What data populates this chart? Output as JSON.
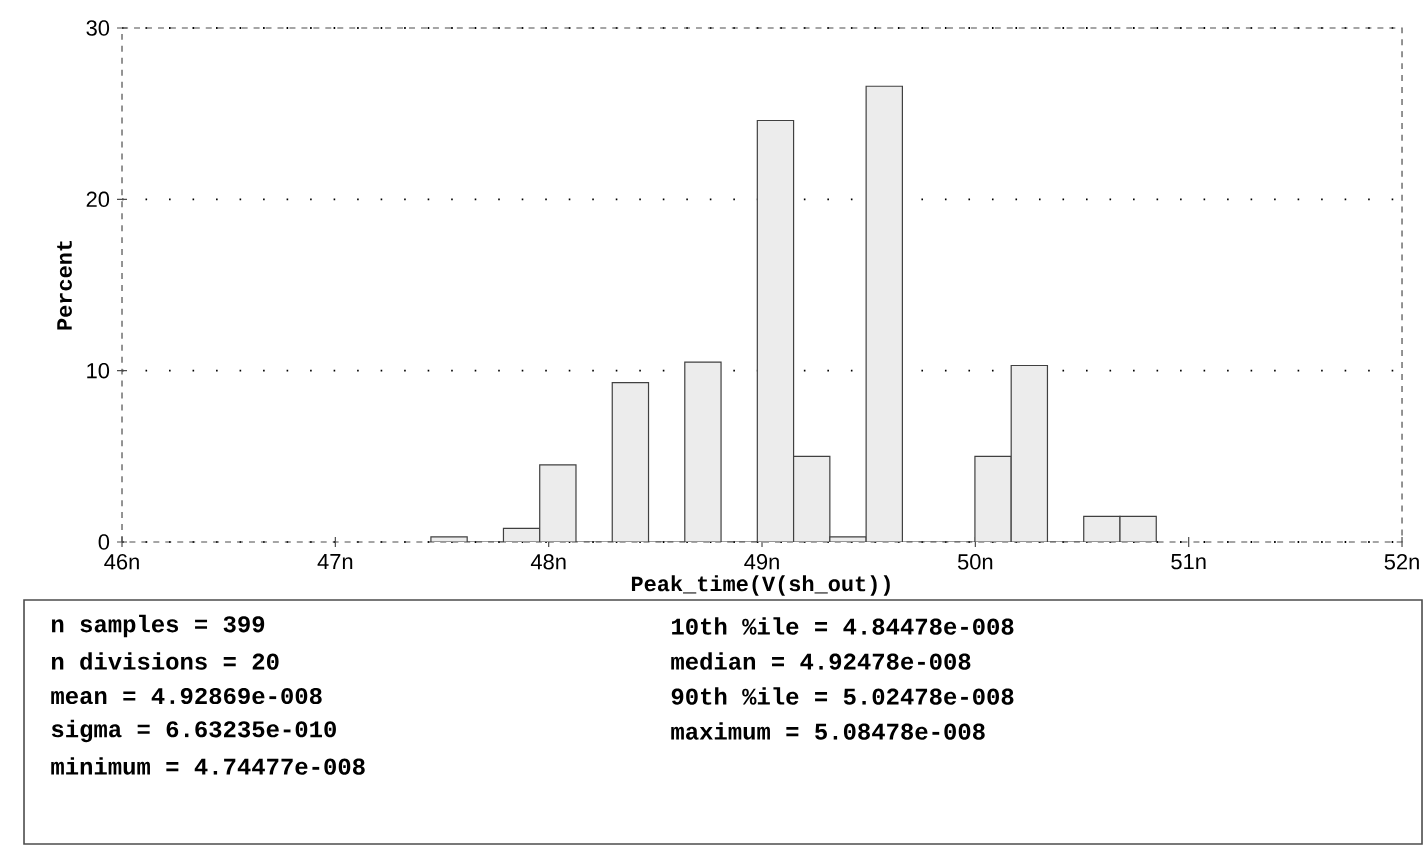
{
  "chart_data": {
    "type": "histogram",
    "xlabel": "Peak_time(V(sh_out))",
    "ylabel": "Percent",
    "bins": [
      47.448,
      47.618,
      47.788,
      47.958,
      48.128,
      48.298,
      48.468,
      48.638,
      48.808,
      48.978,
      49.148,
      49.318,
      49.488,
      49.658,
      49.828,
      49.998,
      50.168,
      50.338,
      50.508,
      50.678,
      50.848
    ],
    "values": [
      0.3,
      0,
      0.8,
      4.5,
      0,
      9.3,
      0,
      10.5,
      0,
      24.6,
      5.0,
      0.3,
      26.6,
      0,
      0,
      5.0,
      10.3,
      0,
      1.5,
      1.5
    ],
    "color": "#ececec",
    "xlim": [
      46,
      52
    ],
    "xticks": [
      {
        "value": 46,
        "label": "46n"
      },
      {
        "value": 47,
        "label": "47n"
      },
      {
        "value": 48,
        "label": "48n"
      },
      {
        "value": 49,
        "label": "49n"
      },
      {
        "value": 50,
        "label": "50n"
      },
      {
        "value": 51,
        "label": "51n"
      },
      {
        "value": 52,
        "label": "52n"
      }
    ],
    "ylim": [
      0,
      30
    ],
    "yticks": [
      0,
      10,
      20,
      30
    ],
    "grid": "y",
    "annotations": [
      "n samples   = 399",
      "10th %ile   = 4.84478e-008",
      "n divisions = 20",
      "median      = 4.92478e-008",
      "mean        = 4.92869e-008",
      "90th %ile   = 5.02478e-008",
      "sigma       = 6.63235e-010",
      "maximum     = 5.08478e-008",
      "minimum     = 4.74477e-008"
    ]
  }
}
